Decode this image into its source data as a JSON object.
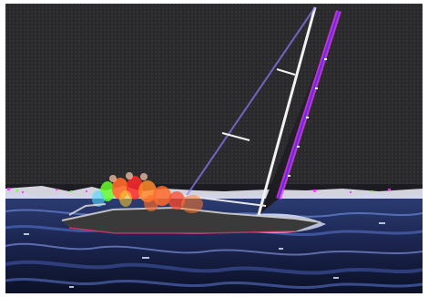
{
  "image": {
    "subject": "",
    "colors": {
      "sky": "#2a2a2c",
      "sea_dark": "#111a3a",
      "sea_mid": "#3a4f8a",
      "foam": "#dfe6ff",
      "mainsail_edge": "#ff33ff",
      "mast": "#f2f2f2",
      "crew_orange": "#ff6a2a",
      "crew_green": "#68ff2a",
      "hull": "#3a3a3a",
      "horizon_white": "#f3f3ff"
    }
  }
}
